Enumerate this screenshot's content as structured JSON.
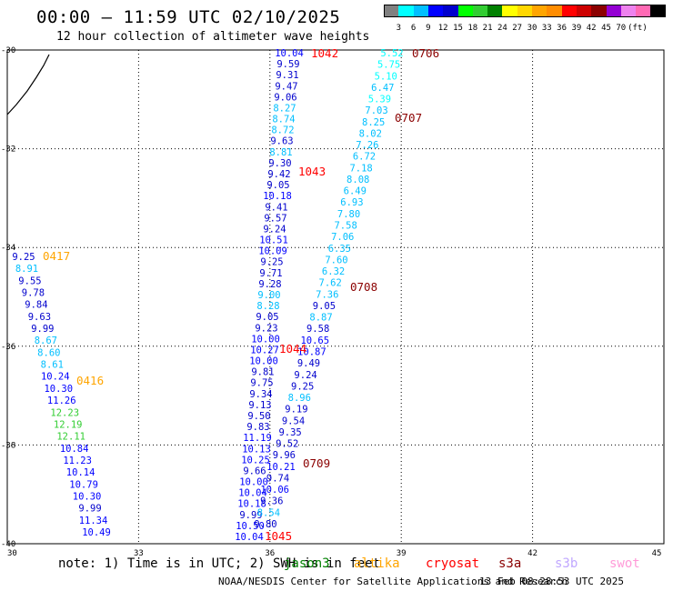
{
  "header": {
    "title": "00:00 – 11:59 UTC 02/10/2025",
    "subtitle": "12 hour collection of altimeter wave heights"
  },
  "colorbar": {
    "labels": [
      "3",
      "6",
      "9",
      "12",
      "15",
      "18",
      "21",
      "24",
      "27",
      "30",
      "33",
      "36",
      "39",
      "42",
      "45",
      "70",
      "(ft)"
    ],
    "colors": [
      "#808080",
      "#00ffff",
      "#00bfff",
      "#0000ff",
      "#0000cd",
      "#00ff00",
      "#32cd32",
      "#008000",
      "#ffff00",
      "#ffd700",
      "#ffa500",
      "#ff8c00",
      "#ff0000",
      "#cd0000",
      "#8b0000",
      "#9400d3",
      "#ee82ee",
      "#ff69b4",
      "#000000"
    ]
  },
  "axes": {
    "x_ticks": [
      "30",
      "33",
      "36",
      "39",
      "42",
      "45"
    ],
    "y_ticks": [
      "-30",
      "-32",
      "-34",
      "-36",
      "-38",
      "-40"
    ]
  },
  "tracks": [
    {
      "time": "1042",
      "time_color": "#ff0000",
      "values": [
        "10.04",
        "9.59",
        "9.31",
        "9.47",
        "9.06",
        "8.27",
        "8.74",
        "8.72",
        "9.63",
        "8.81",
        "9.30",
        "9.42",
        "9.05",
        "10.18",
        "9.41",
        "9.57",
        "9.24",
        "10.51",
        "10.09",
        "9.25",
        "9.71",
        "9.28",
        "9.00",
        "8.28",
        "9.05",
        "9.23",
        "10.00",
        "10.27",
        "10.00",
        "9.81",
        "9.75",
        "9.34",
        "9.13",
        "9.50",
        "9.83",
        "11.19",
        "10.13",
        "10.25",
        "9.66",
        "10.00",
        "10.04",
        "10.18",
        "9.99",
        "10.50",
        "10.04"
      ],
      "colors": [
        "#0000ff",
        "#0000cd",
        "#0000cd",
        "#0000cd",
        "#0000cd",
        "#00bfff",
        "#00bfff",
        "#00bfff",
        "#0000cd",
        "#00bfff",
        "#0000cd",
        "#0000cd",
        "#0000cd",
        "#0000ff",
        "#0000cd",
        "#0000cd",
        "#0000cd",
        "#0000ff",
        "#0000ff",
        "#0000cd",
        "#0000cd",
        "#0000cd",
        "#00bfff",
        "#00bfff",
        "#0000cd",
        "#0000cd",
        "#0000ff",
        "#0000ff",
        "#0000ff",
        "#0000cd",
        "#0000cd",
        "#0000cd",
        "#0000cd",
        "#0000cd",
        "#0000cd",
        "#0000ff",
        "#0000ff",
        "#0000ff",
        "#0000cd",
        "#0000ff",
        "#0000ff",
        "#0000ff",
        "#0000cd",
        "#0000ff",
        "#0000ff"
      ]
    },
    {
      "time": "1043",
      "time_color": "#ff0000"
    },
    {
      "time": "1044",
      "time_color": "#ff0000"
    },
    {
      "time": "1045",
      "time_color": "#ff0000"
    },
    {
      "time": "0706",
      "time_color": "#8b0000",
      "values": [
        "5.52",
        "5.75",
        "5.10",
        "6.47",
        "5.39",
        "7.03",
        "8.25",
        "8.02",
        "7.26",
        "6.72",
        "7.18",
        "8.08",
        "6.49",
        "6.93",
        "7.80",
        "7.58",
        "7.06",
        "6.35",
        "7.60",
        "6.32",
        "7.62",
        "7.36",
        "9.05",
        "8.87",
        "9.58",
        "10.65",
        "10.87",
        "9.49",
        "9.24",
        "9.25",
        "8.96",
        "9.19",
        "9.54",
        "9.35",
        "9.52",
        "9.96",
        "10.21",
        "9.74",
        "10.06",
        "9.36",
        "8.54",
        "9.80"
      ],
      "colors": [
        "#00ffff",
        "#00ffff",
        "#00ffff",
        "#00bfff",
        "#00ffff",
        "#00bfff",
        "#00bfff",
        "#00bfff",
        "#00bfff",
        "#00bfff",
        "#00bfff",
        "#00bfff",
        "#00bfff",
        "#00bfff",
        "#00bfff",
        "#00bfff",
        "#00bfff",
        "#00bfff",
        "#00bfff",
        "#00bfff",
        "#00bfff",
        "#00bfff",
        "#0000cd",
        "#00bfff",
        "#0000cd",
        "#0000ff",
        "#0000ff",
        "#0000cd",
        "#0000cd",
        "#0000cd",
        "#00bfff",
        "#0000cd",
        "#0000cd",
        "#0000cd",
        "#0000cd",
        "#0000cd",
        "#0000ff",
        "#0000cd",
        "#0000ff",
        "#0000cd",
        "#00bfff",
        "#0000cd"
      ]
    },
    {
      "time": "0707",
      "time_color": "#8b0000"
    },
    {
      "time": "0708",
      "time_color": "#8b0000"
    },
    {
      "time": "0709",
      "time_color": "#8b0000"
    },
    {
      "time": "0417",
      "time_color": "#ffa500",
      "values": [
        "9.25",
        "8.91",
        "9.55",
        "9.78",
        "9.84",
        "9.63",
        "9.99",
        "8.67",
        "8.60",
        "8.61",
        "10.24",
        "10.30",
        "11.26",
        "12.23",
        "12.19",
        "12.11",
        "10.84",
        "11.23",
        "10.14",
        "10.79",
        "10.30",
        "9.99",
        "11.34",
        "10.49"
      ],
      "colors": [
        "#0000cd",
        "#00bfff",
        "#0000cd",
        "#0000cd",
        "#0000cd",
        "#0000cd",
        "#0000cd",
        "#00bfff",
        "#00bfff",
        "#00bfff",
        "#0000ff",
        "#0000ff",
        "#0000ff",
        "#32cd32",
        "#32cd32",
        "#32cd32",
        "#0000ff",
        "#0000ff",
        "#0000ff",
        "#0000ff",
        "#0000ff",
        "#0000cd",
        "#0000ff",
        "#0000ff"
      ]
    },
    {
      "time": "0416",
      "time_color": "#ffa500"
    }
  ],
  "footer": {
    "note": "note: 1) Time is in UTC; 2) SWH is in feet",
    "satellites": [
      {
        "name": "jason3",
        "color": "#008000"
      },
      {
        "name": "altika",
        "color": "#ffa500"
      },
      {
        "name": "cryosat",
        "color": "#ff0000"
      },
      {
        "name": "s3a",
        "color": "#8b0000"
      },
      {
        "name": "s3b",
        "color": "#c0a8ff"
      },
      {
        "name": "swot",
        "color": "#ff9ad8"
      }
    ],
    "credit": "NOAA/NESDIS Center for Satellite Applications and Research",
    "timestamp": "13 Feb 08:28:53 UTC 2025"
  }
}
